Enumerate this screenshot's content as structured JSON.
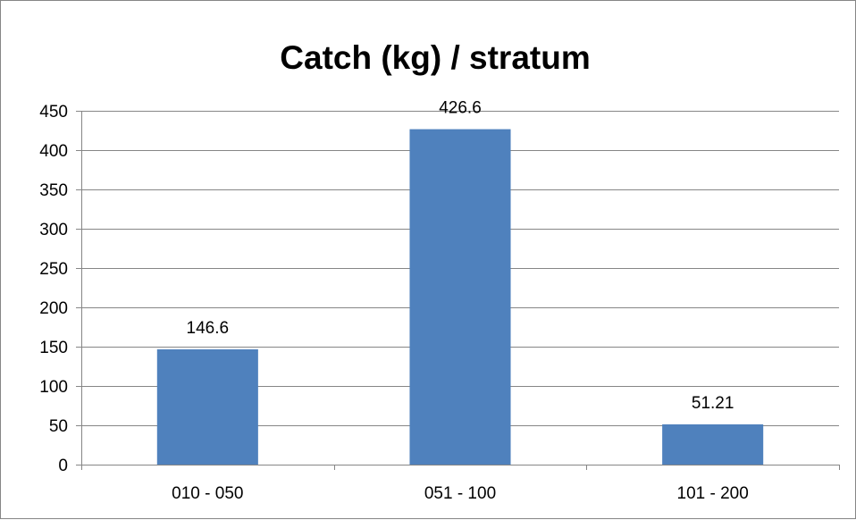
{
  "chart_data": {
    "type": "bar",
    "title": "Catch (kg) / stratum",
    "xlabel": "",
    "ylabel": "",
    "categories": [
      "010 - 050",
      "051 - 100",
      "101 - 200"
    ],
    "series": [
      {
        "values": [
          146.6,
          426.6,
          51.21
        ],
        "data_labels": [
          "146.6",
          "426.6",
          "51.21"
        ],
        "color": "#4f81bd"
      }
    ],
    "ylim": [
      0,
      450
    ],
    "ytick_step": 50,
    "yticks": [
      "0",
      "50",
      "100",
      "150",
      "200",
      "250",
      "300",
      "350",
      "400",
      "450"
    ],
    "grid": true,
    "gridline_color": "#868686",
    "legend": "none"
  }
}
